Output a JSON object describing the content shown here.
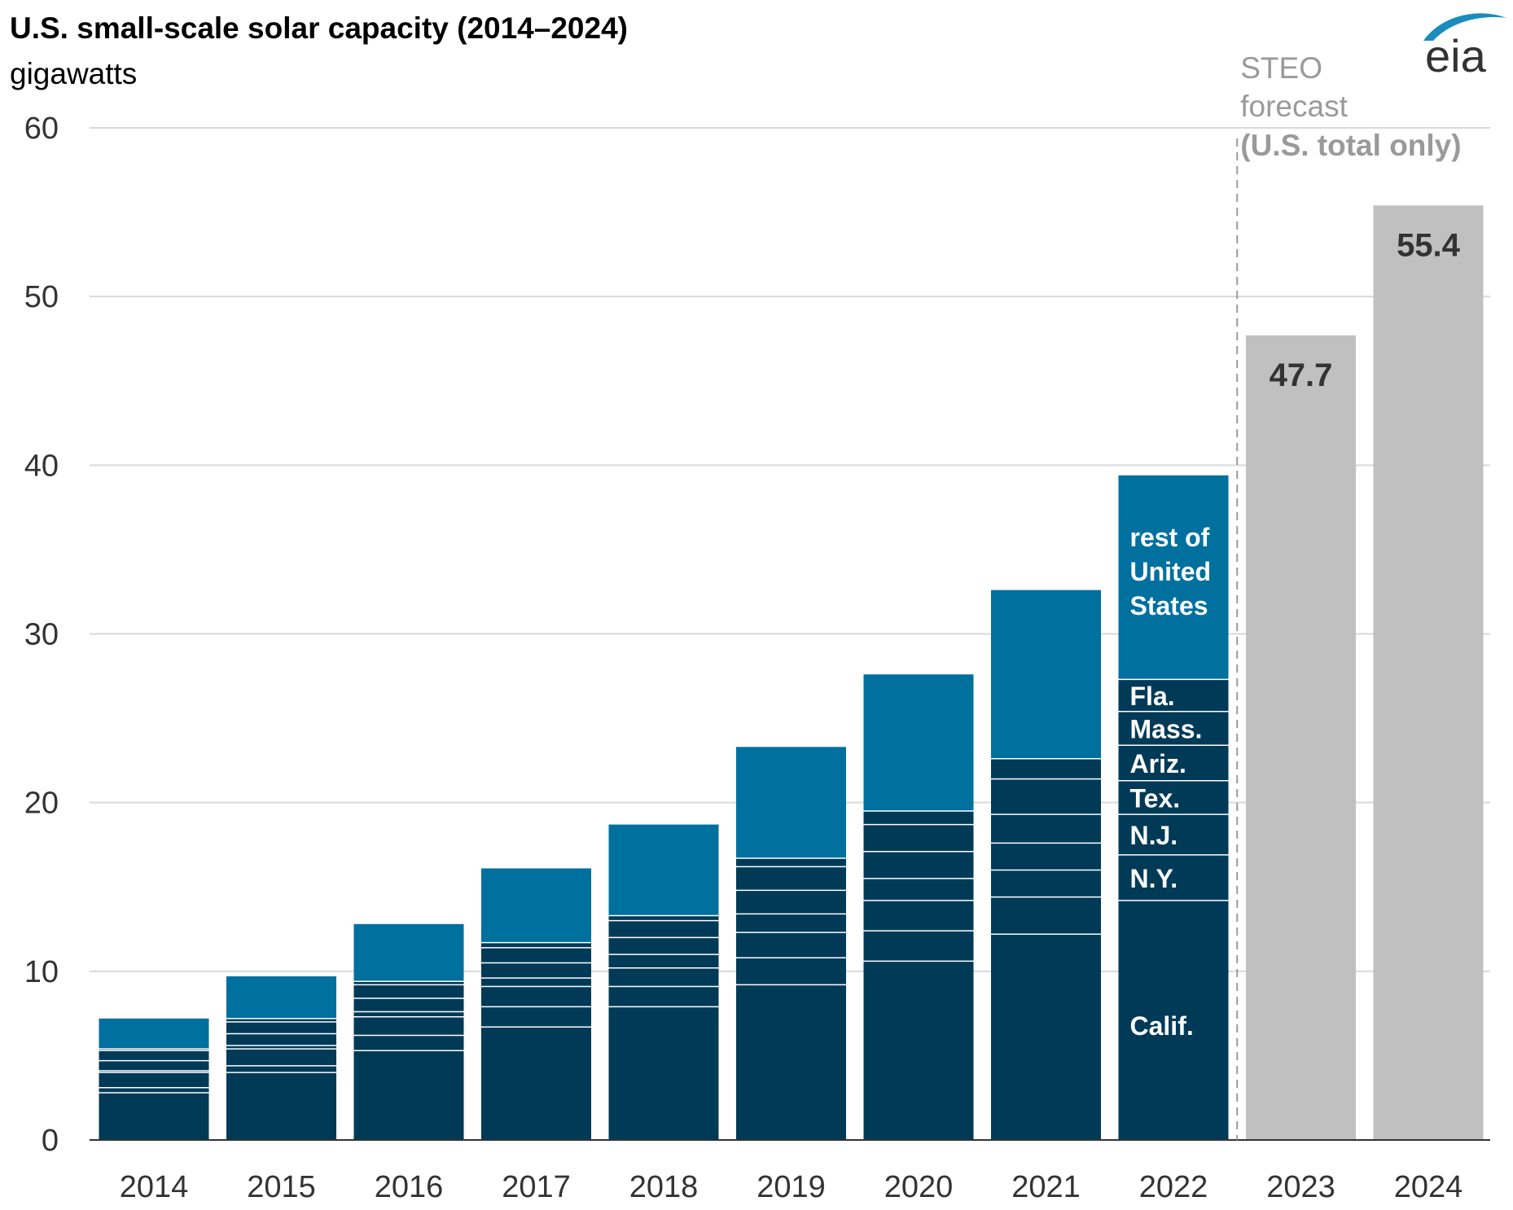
{
  "title": "U.S. small-scale solar capacity (2014–2024)",
  "subtitle": "gigawatts",
  "logo_text": "eia",
  "forecast_note": [
    "STEO",
    "forecast",
    "(U.S. total only)"
  ],
  "colors": {
    "states": "#003a57",
    "rest": "#00709f",
    "forecast": "#c0c0c0",
    "divider": "#ffffff",
    "grid": "#d9d9d9",
    "axis": "#333333",
    "forecast_line": "#9a9a9a",
    "logo": "#1a8cbe"
  },
  "chart_data": {
    "type": "bar",
    "stacked": true,
    "title": "U.S. small-scale solar capacity (2014–2024)",
    "ylabel": "gigawatts",
    "ylim": [
      0,
      60
    ],
    "yticks": [
      0,
      10,
      20,
      30,
      40,
      50,
      60
    ],
    "grid": true,
    "categories": [
      "2014",
      "2015",
      "2016",
      "2017",
      "2018",
      "2019",
      "2020",
      "2021",
      "2022",
      "2023",
      "2024"
    ],
    "stack_order": [
      "Calif.",
      "N.Y.",
      "N.J.",
      "Tex.",
      "Ariz.",
      "Mass.",
      "Fla.",
      "rest of United States"
    ],
    "series": [
      {
        "name": "Calif.",
        "values": [
          2.8,
          4.0,
          5.3,
          6.7,
          7.9,
          9.2,
          10.6,
          12.2,
          14.2,
          null,
          null
        ]
      },
      {
        "name": "N.Y.",
        "values": [
          0.3,
          0.4,
          0.9,
          1.2,
          1.2,
          1.6,
          1.8,
          2.2,
          2.7,
          null,
          null
        ]
      },
      {
        "name": "N.J.",
        "values": [
          0.9,
          1.0,
          1.1,
          1.2,
          1.1,
          1.5,
          1.8,
          1.6,
          2.4,
          null,
          null
        ]
      },
      {
        "name": "Tex.",
        "values": [
          0.1,
          0.2,
          0.3,
          0.5,
          0.8,
          1.1,
          1.3,
          1.6,
          2.0,
          null,
          null
        ]
      },
      {
        "name": "Ariz.",
        "values": [
          0.6,
          0.7,
          0.8,
          0.9,
          1.0,
          1.4,
          1.6,
          1.7,
          2.1,
          null,
          null
        ]
      },
      {
        "name": "Mass.",
        "values": [
          0.6,
          0.7,
          0.8,
          0.9,
          1.0,
          1.4,
          1.6,
          2.1,
          2.0,
          null,
          null
        ]
      },
      {
        "name": "Fla.",
        "values": [
          0.1,
          0.2,
          0.2,
          0.3,
          0.3,
          0.5,
          0.8,
          1.2,
          1.9,
          null,
          null
        ]
      },
      {
        "name": "rest of United States",
        "values": [
          1.8,
          2.5,
          3.4,
          4.4,
          5.4,
          6.6,
          8.1,
          10.0,
          12.1,
          null,
          null
        ]
      },
      {
        "name": "U.S. total (STEO forecast)",
        "values": [
          null,
          null,
          null,
          null,
          null,
          null,
          null,
          null,
          null,
          47.7,
          55.4
        ]
      }
    ],
    "value_labels": {
      "2023": "47.7",
      "2024": "55.4"
    },
    "forecast_start": "2023"
  }
}
